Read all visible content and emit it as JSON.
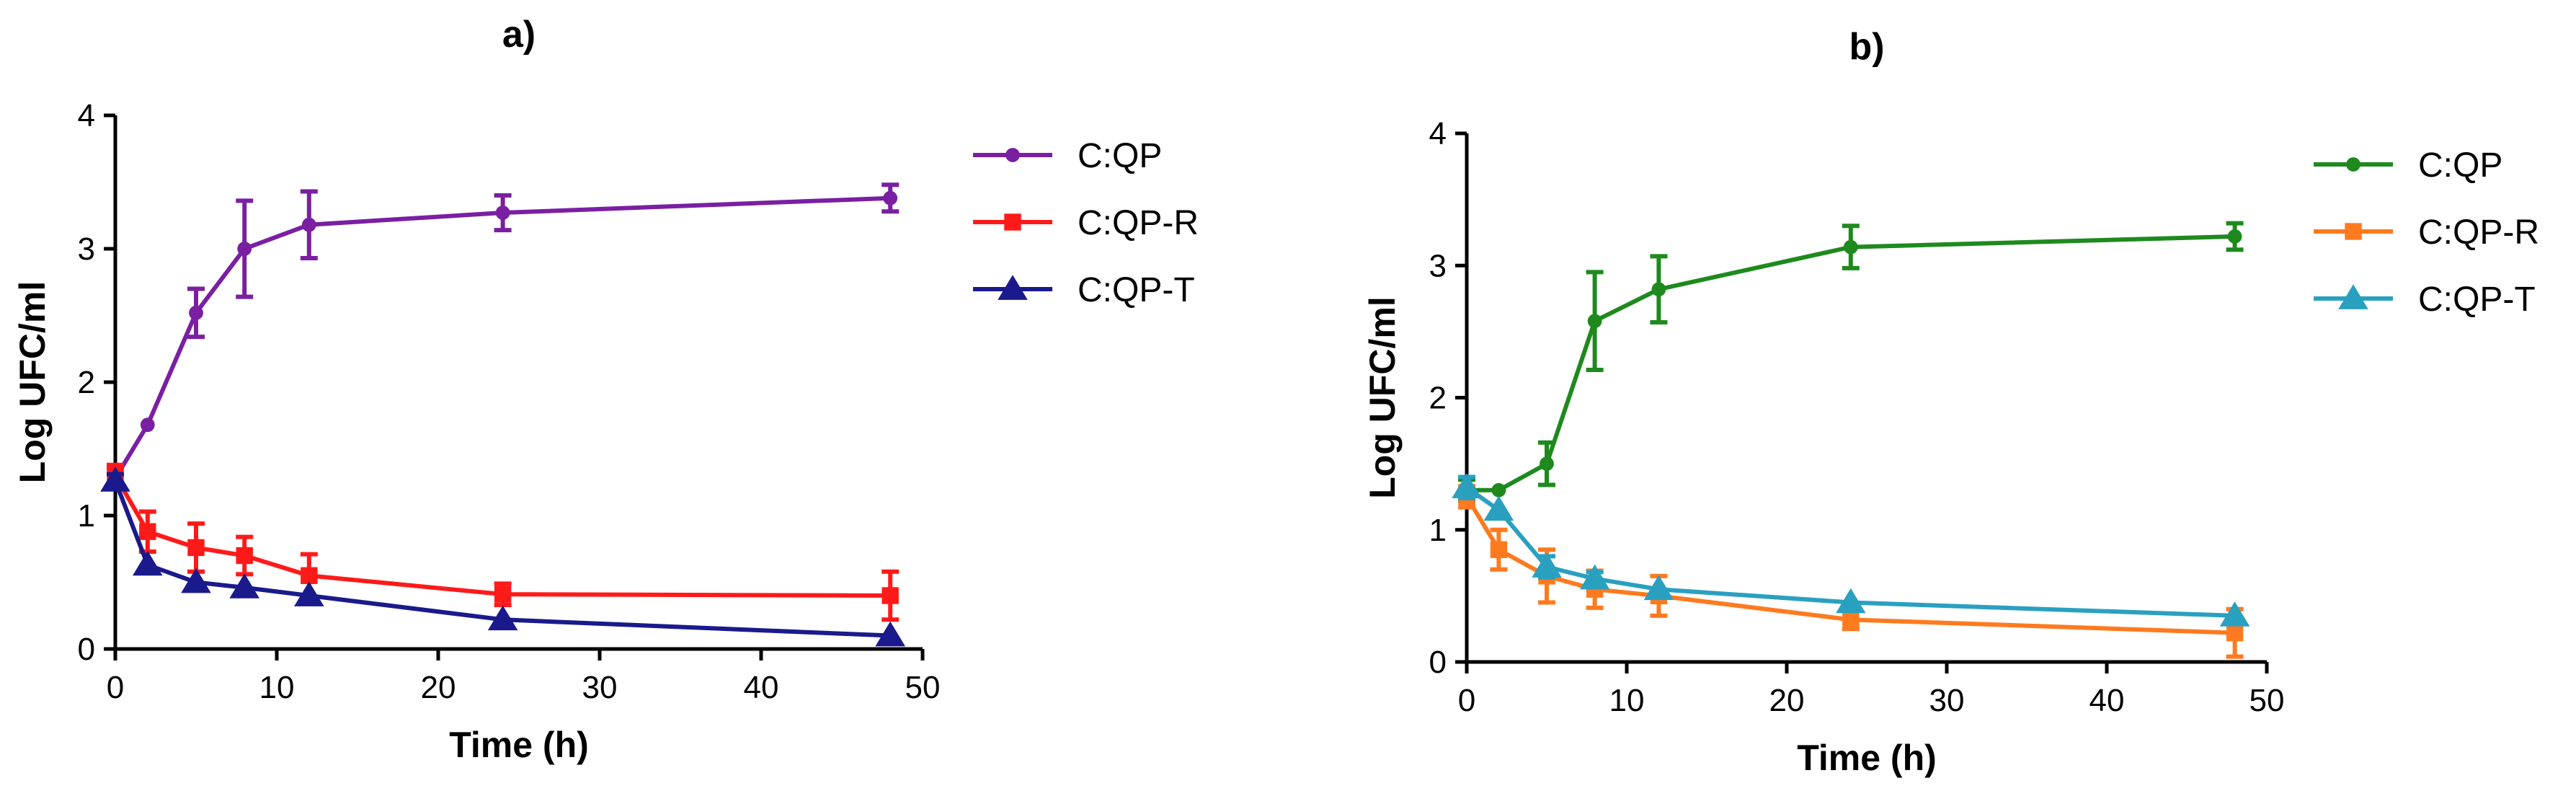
{
  "chart_data": [
    {
      "type": "line",
      "title": "a)",
      "xlabel": "Time (h)",
      "ylabel": "Log UFC/ml",
      "xlim": [
        0,
        50
      ],
      "ylim": [
        0,
        4
      ],
      "xticks": [
        0,
        10,
        20,
        30,
        40,
        50
      ],
      "yticks": [
        0,
        1,
        2,
        3,
        4
      ],
      "legend_position": "right",
      "x": [
        0,
        2,
        5,
        8,
        12,
        24,
        48
      ],
      "series": [
        {
          "name": "C:QP",
          "color": "#7a1fa2",
          "marker": "circle",
          "values": [
            1.28,
            1.68,
            2.52,
            3.0,
            3.18,
            3.27,
            3.38
          ],
          "errors": [
            0.08,
            0.0,
            0.18,
            0.36,
            0.25,
            0.13,
            0.1
          ]
        },
        {
          "name": "C:QP-R",
          "color": "#ff1a1a",
          "marker": "square",
          "values": [
            1.3,
            0.88,
            0.76,
            0.7,
            0.55,
            0.41,
            0.4
          ],
          "errors": [
            0.08,
            0.15,
            0.18,
            0.14,
            0.16,
            0.08,
            0.18
          ]
        },
        {
          "name": "C:QP-T",
          "color": "#1a1a8c",
          "marker": "triangle",
          "values": [
            1.26,
            0.63,
            0.5,
            0.46,
            0.4,
            0.22,
            0.1
          ],
          "errors": [
            0.05,
            0.0,
            0.0,
            0.0,
            0.0,
            0.0,
            0.0
          ]
        }
      ]
    },
    {
      "type": "line",
      "title": "b)",
      "xlabel": "Time (h)",
      "ylabel": "Log UFC/ml",
      "xlim": [
        0,
        50
      ],
      "ylim": [
        0,
        4
      ],
      "xticks": [
        0,
        10,
        20,
        30,
        40,
        50
      ],
      "yticks": [
        0,
        1,
        2,
        3,
        4
      ],
      "legend_position": "right",
      "x": [
        0,
        2,
        5,
        8,
        12,
        24,
        48
      ],
      "series": [
        {
          "name": "C:QP",
          "color": "#1e8a1e",
          "marker": "circle",
          "values": [
            1.3,
            1.3,
            1.5,
            2.58,
            2.82,
            3.14,
            3.22
          ],
          "errors": [
            0.08,
            0.0,
            0.16,
            0.37,
            0.25,
            0.16,
            0.1
          ]
        },
        {
          "name": "C:QP-R",
          "color": "#ff7a1f",
          "marker": "square",
          "values": [
            1.25,
            0.85,
            0.65,
            0.55,
            0.5,
            0.32,
            0.22
          ],
          "errors": [
            0.08,
            0.15,
            0.2,
            0.14,
            0.15,
            0.07,
            0.18
          ]
        },
        {
          "name": "C:QP-T",
          "color": "#2aa0c0",
          "marker": "triangle",
          "values": [
            1.32,
            1.15,
            0.72,
            0.63,
            0.55,
            0.45,
            0.35
          ],
          "errors": [
            0.08,
            0.0,
            0.08,
            0.05,
            0.0,
            0.0,
            0.0
          ]
        }
      ]
    }
  ]
}
